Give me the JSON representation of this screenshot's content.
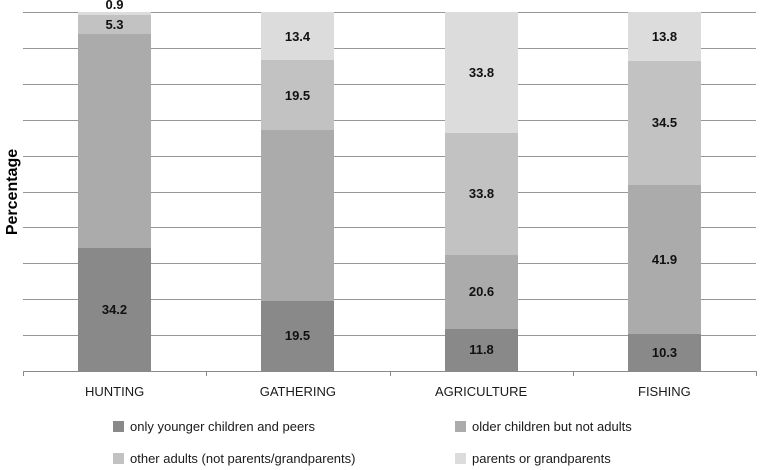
{
  "chart_data": {
    "type": "bar",
    "stacked": true,
    "title": "",
    "ylabel": "Percentage",
    "xlabel": "",
    "ylim": [
      0,
      100
    ],
    "gridline_step": 10,
    "grid": true,
    "legend_position": "bottom",
    "categories": [
      "HUNTING",
      "GATHERING",
      "AGRICULTURE",
      "FISHING"
    ],
    "series": [
      {
        "name": "only younger children and peers",
        "color": "#898989",
        "values": [
          34.2,
          19.5,
          11.8,
          10.3
        ],
        "display_labels": [
          "34.2",
          "19.5",
          "11.8",
          "10.3"
        ]
      },
      {
        "name": "older children but not adults",
        "color": "#ababab",
        "values": [
          59.6,
          47.6,
          20.6,
          41.9
        ],
        "display_labels": [
          "",
          "",
          "20.6",
          "41.9"
        ]
      },
      {
        "name": "other adults (not parents/grandparents)",
        "color": "#c2c2c2",
        "values": [
          5.3,
          19.5,
          33.8,
          34.5
        ],
        "display_labels": [
          "5.3",
          "19.5",
          "33.8",
          "34.5"
        ]
      },
      {
        "name": "parents or grandparents",
        "color": "#dcdcdc",
        "values": [
          0.9,
          13.4,
          33.8,
          13.8
        ],
        "display_labels": [
          "0.9",
          "13.4",
          "33.8",
          "13.8"
        ]
      }
    ]
  }
}
